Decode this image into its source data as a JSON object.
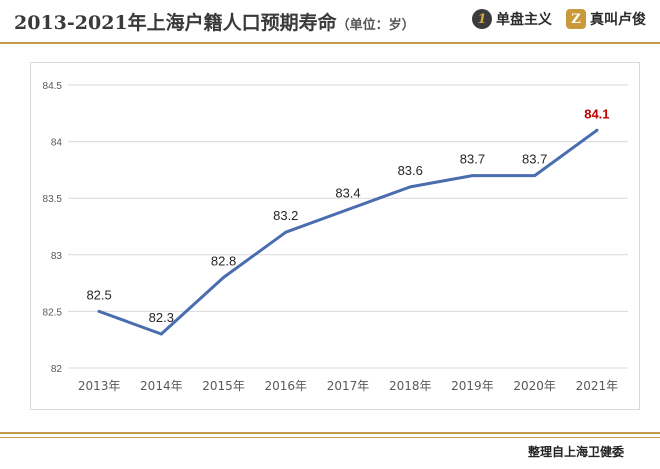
{
  "header": {
    "title": "2013-2021年上海户籍人口预期寿命",
    "unit": "（单位：岁）",
    "logo1_mark": "1",
    "logo1_text": "单盘主义",
    "logo2_mark": "Z",
    "logo2_text": "真叫卢俊"
  },
  "footer": {
    "source": "整理自上海卫健委"
  },
  "chart_data": {
    "type": "line",
    "categories": [
      "2013年",
      "2014年",
      "2015年",
      "2016年",
      "2017年",
      "2018年",
      "2019年",
      "2020年",
      "2021年"
    ],
    "series": [
      {
        "values": [
          82.5,
          82.3,
          82.8,
          83.2,
          83.4,
          83.6,
          83.7,
          83.7,
          84.1
        ]
      }
    ],
    "data_labels": [
      "82.5",
      "82.3",
      "82.8",
      "83.2",
      "83.4",
      "83.6",
      "83.7",
      "83.7",
      "84.1"
    ],
    "ylim": [
      82,
      84.5
    ],
    "yticks": [
      "82",
      "82.5",
      "83",
      "83.5",
      "84",
      "84.5"
    ],
    "line_color": "#4a6db0",
    "highlight_label_color": "#c00000",
    "grid": true
  }
}
